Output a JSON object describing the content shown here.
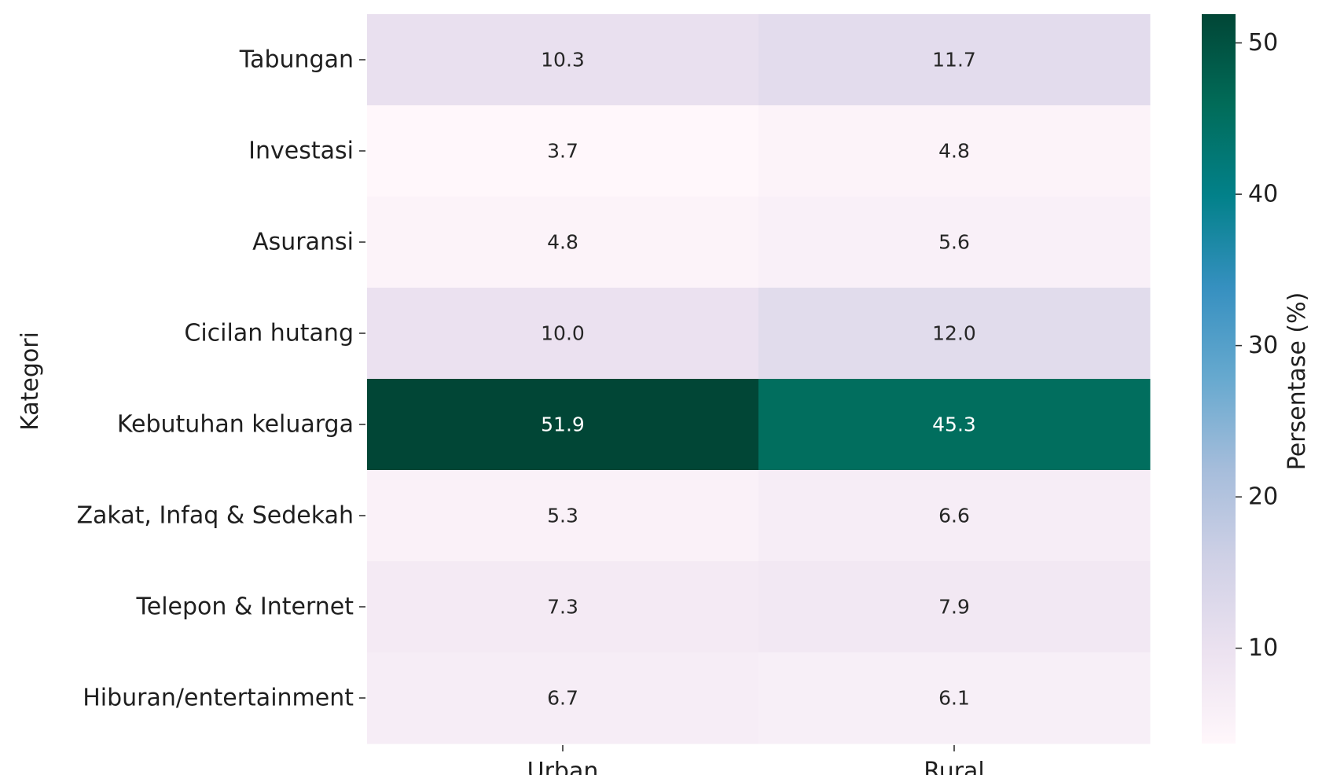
{
  "chart_data": {
    "type": "heatmap",
    "title": "",
    "xlabel": "",
    "ylabel": "Kategori",
    "columns": [
      "Urban",
      "Rural"
    ],
    "rows": [
      "Tabungan",
      "Investasi",
      "Asuransi",
      "Cicilan hutang",
      "Kebutuhan keluarga",
      "Zakat, Infaq & Sedekah",
      "Telepon & Internet",
      "Hiburan/entertainment"
    ],
    "values": [
      [
        10.3,
        11.7
      ],
      [
        3.7,
        4.8
      ],
      [
        4.8,
        5.6
      ],
      [
        10.0,
        12.0
      ],
      [
        51.9,
        45.3
      ],
      [
        5.3,
        6.6
      ],
      [
        7.3,
        7.9
      ],
      [
        6.7,
        6.1
      ]
    ],
    "value_labels": [
      [
        "10.3",
        "11.7"
      ],
      [
        "3.7",
        "4.8"
      ],
      [
        "4.8",
        "5.6"
      ],
      [
        "10.0",
        "12.0"
      ],
      [
        "51.9",
        "45.3"
      ],
      [
        "5.3",
        "6.6"
      ],
      [
        "7.3",
        "7.9"
      ],
      [
        "6.7",
        "6.1"
      ]
    ],
    "colorbar": {
      "label": "Persentase (%)",
      "range": [
        3.7,
        51.9
      ],
      "ticks": [
        10,
        20,
        30,
        40,
        50
      ],
      "tick_labels": [
        "10",
        "20",
        "30",
        "40",
        "50"
      ],
      "colormap": "PuBuGn",
      "colormap_stops": [
        "#fff7fb",
        "#ece2f0",
        "#d0d1e6",
        "#a6bddb",
        "#67a9cf",
        "#3690c0",
        "#02818a",
        "#016c59",
        "#014636"
      ]
    },
    "text_colors": {
      "dark_cell": "#ffffff",
      "light_cell": "#262626"
    }
  }
}
